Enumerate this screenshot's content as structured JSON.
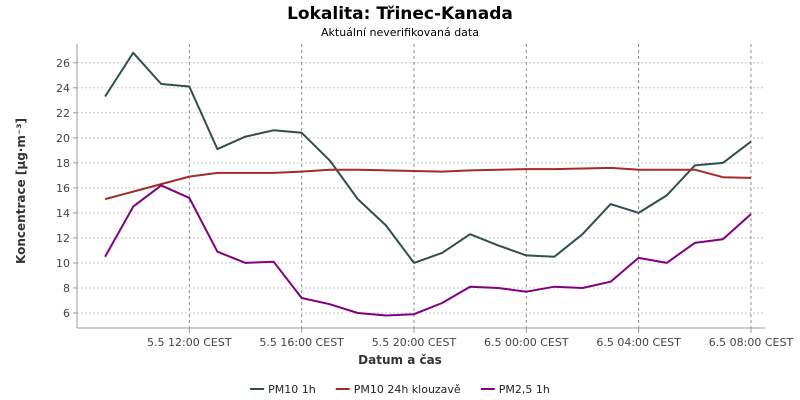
{
  "chart_data": {
    "type": "line",
    "title": "Lokalita: Třinec-Kanada",
    "subtitle": "Aktuální neverifikovaná data",
    "xlabel": "Datum a čas",
    "ylabel": "Koncentrace [µg·m⁻³]",
    "ylim": [
      4.8,
      27.5
    ],
    "y_ticks": [
      6,
      8,
      10,
      12,
      14,
      16,
      18,
      20,
      22,
      24,
      26
    ],
    "x": [
      "2025-05-05 09:00",
      "2025-05-05 10:00",
      "2025-05-05 11:00",
      "2025-05-05 12:00",
      "2025-05-05 13:00",
      "2025-05-05 14:00",
      "2025-05-05 15:00",
      "2025-05-05 16:00",
      "2025-05-05 17:00",
      "2025-05-05 18:00",
      "2025-05-05 19:00",
      "2025-05-05 20:00",
      "2025-05-05 21:00",
      "2025-05-05 22:00",
      "2025-05-05 23:00",
      "2025-05-06 00:00",
      "2025-05-06 01:00",
      "2025-05-06 02:00",
      "2025-05-06 03:00",
      "2025-05-06 04:00",
      "2025-05-06 05:00",
      "2025-05-06 06:00",
      "2025-05-06 07:00",
      "2025-05-06 08:00"
    ],
    "xlim": [
      "2025-05-05 08:00",
      "2025-05-06 08:30"
    ],
    "x_tick_labels": [
      {
        "at": "2025-05-05 12:00",
        "label": "5.5 12:00 CEST"
      },
      {
        "at": "2025-05-05 16:00",
        "label": "5.5 16:00 CEST"
      },
      {
        "at": "2025-05-05 20:00",
        "label": "5.5 20:00 CEST"
      },
      {
        "at": "2025-05-06 00:00",
        "label": "6.5 00:00 CEST"
      },
      {
        "at": "2025-05-06 04:00",
        "label": "6.5 04:00 CEST"
      },
      {
        "at": "2025-05-06 08:00",
        "label": "6.5 08:00 CEST"
      }
    ],
    "series": [
      {
        "name": "PM10 1h",
        "color": "#2f4f4f",
        "values": [
          23.3,
          26.8,
          24.3,
          24.1,
          19.1,
          20.1,
          20.6,
          20.4,
          18.2,
          15.1,
          13.0,
          10.0,
          10.8,
          12.3,
          11.4,
          10.6,
          10.5,
          12.3,
          14.7,
          14.0,
          15.4,
          17.8,
          18.0,
          19.7
        ]
      },
      {
        "name": "PM10 24h klouzavě",
        "color": "#a52a2a",
        "values": [
          15.1,
          15.7,
          16.3,
          16.9,
          17.2,
          17.2,
          17.2,
          17.3,
          17.45,
          17.45,
          17.4,
          17.35,
          17.3,
          17.4,
          17.45,
          17.5,
          17.5,
          17.55,
          17.6,
          17.45,
          17.45,
          17.45,
          16.85,
          16.8
        ]
      },
      {
        "name": "PM2,5 1h",
        "color": "#800080",
        "values": [
          10.5,
          14.5,
          16.2,
          15.2,
          10.9,
          10.0,
          10.1,
          7.2,
          6.7,
          6.0,
          5.8,
          5.9,
          6.8,
          8.1,
          8.0,
          7.7,
          8.1,
          8.0,
          8.5,
          10.4,
          10.0,
          11.6,
          11.9,
          13.9
        ]
      }
    ],
    "grid": true,
    "legend_position": "bottom"
  }
}
